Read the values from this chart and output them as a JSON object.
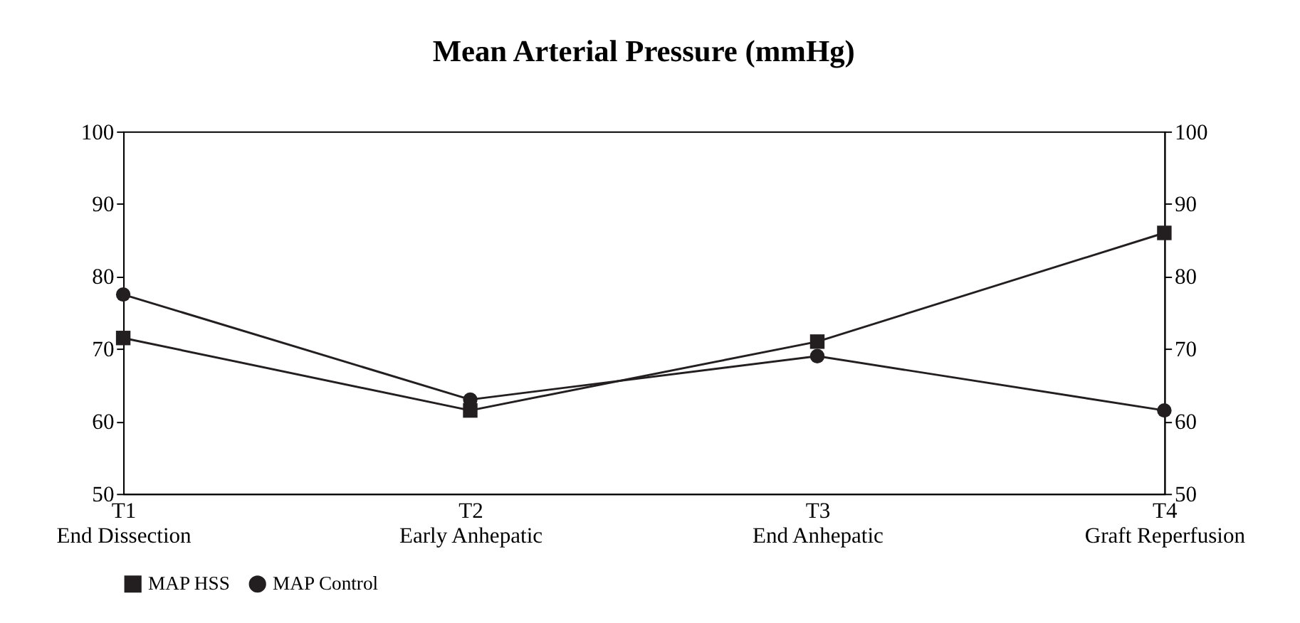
{
  "chart_data": {
    "type": "line",
    "title": "Mean Arterial Pressure (mmHg)",
    "categories": [
      "T1\nEnd Dissection",
      "T2\nEarly Anhepatic",
      "T3\nEnd Anhepatic",
      "T4\nGraft Reperfusion"
    ],
    "series": [
      {
        "name": "MAP HSS",
        "color": "#231f20",
        "marker": "square",
        "values": [
          71.5,
          61.5,
          71,
          86
        ]
      },
      {
        "name": "MAP Control",
        "color": "#231f20",
        "marker": "circle",
        "values": [
          77.5,
          63,
          69,
          61.5
        ]
      }
    ],
    "ylim": [
      50,
      100
    ],
    "yticks": [
      50,
      60,
      70,
      80,
      90,
      100
    ],
    "y2lim": [
      50,
      100
    ],
    "y2ticks": [
      50,
      60,
      70,
      80,
      90,
      100
    ],
    "grid": false,
    "legend": "bottom",
    "line_style": "solid"
  }
}
